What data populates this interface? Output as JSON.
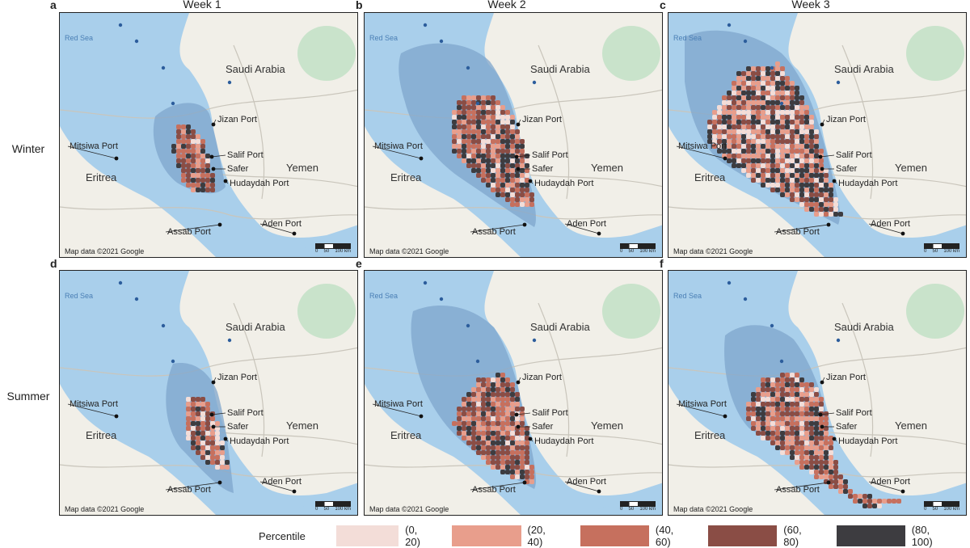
{
  "columns": [
    "Week 1",
    "Week 2",
    "Week 3"
  ],
  "rows": [
    "Winter",
    "Summer"
  ],
  "panels": [
    {
      "letter": "a"
    },
    {
      "letter": "b"
    },
    {
      "letter": "c"
    },
    {
      "letter": "d"
    },
    {
      "letter": "e"
    },
    {
      "letter": "f"
    }
  ],
  "map": {
    "sea_label": "Red Sea",
    "countries": [
      "Saudi Arabia",
      "Yemen",
      "Eritrea"
    ],
    "ports": [
      "Jizan Port",
      "Mitsiwa Port",
      "Salif Port",
      "Safer",
      "Hudaydah Port",
      "Assab Port",
      "Aden Port"
    ],
    "attribution": "Map data ©2021 Google",
    "scale_ticks": [
      "0",
      "50",
      "100 km"
    ]
  },
  "legend": {
    "title": "Percentile",
    "bins": [
      {
        "label": "(0, 20)",
        "color": "#f3ddd8"
      },
      {
        "label": "(20, 40)",
        "color": "#e89e8c"
      },
      {
        "label": "(40, 60)",
        "color": "#c6705e"
      },
      {
        "label": "(60, 80)",
        "color": "#8a4d45"
      },
      {
        "label": "(80, 100)",
        "color": "#3d3c40"
      }
    ]
  },
  "colors": {
    "sea": "#a9cfeb",
    "zone": "#7fa6cc",
    "land": "#f1efe8",
    "green": "#c9e3cb"
  }
}
